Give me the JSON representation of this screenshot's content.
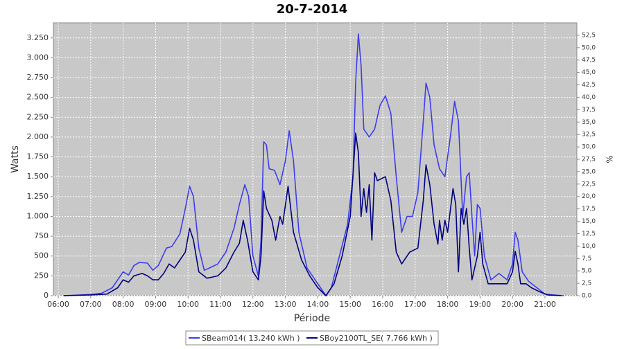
{
  "chart_data": {
    "type": "line",
    "title": "20-7-2014",
    "x_label": "Période",
    "y_label": "Watts",
    "y2_label": "%",
    "xlim": [
      "05:51",
      "21:59"
    ],
    "xticks": [
      "06:00",
      "07:00",
      "08:00",
      "09:00",
      "10:00",
      "11:00",
      "12:00",
      "13:00",
      "14:00",
      "15:00",
      "16:00",
      "17:00",
      "18:00",
      "19:00",
      "20:00",
      "21:00"
    ],
    "ylim": [
      0,
      3440
    ],
    "yticks": [
      0,
      {
        "value": 250,
        "label": "250"
      },
      {
        "value": 500,
        "label": "500"
      },
      {
        "value": 750,
        "label": "750"
      },
      {
        "value": 1000,
        "label": "1.000"
      },
      {
        "value": 1250,
        "label": "1.250"
      },
      {
        "value": 1500,
        "label": "1.500"
      },
      {
        "value": 1750,
        "label": "1.750"
      },
      {
        "value": 2000,
        "label": "2.000"
      },
      {
        "value": 2250,
        "label": "2.250"
      },
      {
        "value": 2500,
        "label": "2.500"
      },
      {
        "value": 2750,
        "label": "2.750"
      },
      {
        "value": 3000,
        "label": "3.000"
      },
      {
        "value": 3250,
        "label": "3.250"
      }
    ],
    "y2lim": [
      0,
      55
    ],
    "y2ticks": [
      {
        "value": 0,
        "label": "0,0"
      },
      {
        "value": 2.5,
        "label": "2,5"
      },
      {
        "value": 5,
        "label": "5,0"
      },
      {
        "value": 7.5,
        "label": "7,5"
      },
      {
        "value": 10,
        "label": "10,0"
      },
      {
        "value": 12.5,
        "label": "12,5"
      },
      {
        "value": 15,
        "label": "15,0"
      },
      {
        "value": 17.5,
        "label": "17,5"
      },
      {
        "value": 20,
        "label": "20,0"
      },
      {
        "value": 22.5,
        "label": "22,5"
      },
      {
        "value": 25,
        "label": "25,0"
      },
      {
        "value": 27.5,
        "label": "27,5"
      },
      {
        "value": 30,
        "label": "30,0"
      },
      {
        "value": 32.5,
        "label": "32,5"
      },
      {
        "value": 35,
        "label": "35,0"
      },
      {
        "value": 37.5,
        "label": "37,5"
      },
      {
        "value": 40,
        "label": "40,0"
      },
      {
        "value": 42.5,
        "label": "42,5"
      },
      {
        "value": 45,
        "label": "45,0"
      },
      {
        "value": 47.5,
        "label": "47,5"
      },
      {
        "value": 50,
        "label": "50,0"
      },
      {
        "value": 52.5,
        "label": "52,5"
      }
    ],
    "grid": true,
    "series": [
      {
        "name": "SBeam014( 13,240 kWh )",
        "color": "#3c3cf0",
        "x": [
          "06:10",
          "06:30",
          "07:00",
          "07:20",
          "07:40",
          "07:50",
          "08:00",
          "08:10",
          "08:20",
          "08:30",
          "08:45",
          "08:55",
          "09:05",
          "09:20",
          "09:30",
          "09:45",
          "09:55",
          "10:03",
          "10:10",
          "10:20",
          "10:30",
          "10:40",
          "10:55",
          "11:10",
          "11:25",
          "11:35",
          "11:45",
          "11:52",
          "12:00",
          "12:10",
          "12:15",
          "12:20",
          "12:25",
          "12:30",
          "12:40",
          "12:50",
          "13:00",
          "13:07",
          "13:15",
          "13:25",
          "13:40",
          "13:55",
          "14:05",
          "14:15",
          "14:25",
          "14:40",
          "14:55",
          "15:05",
          "15:10",
          "15:15",
          "15:20",
          "15:25",
          "15:35",
          "15:45",
          "15:55",
          "16:05",
          "16:15",
          "16:25",
          "16:35",
          "16:45",
          "16:55",
          "17:05",
          "17:15",
          "17:20",
          "17:27",
          "17:35",
          "17:45",
          "17:55",
          "18:05",
          "18:13",
          "18:20",
          "18:28",
          "18:35",
          "18:40",
          "18:45",
          "18:50",
          "18:55",
          "19:00",
          "19:08",
          "19:20",
          "19:35",
          "19:50",
          "20:00",
          "20:05",
          "20:10",
          "20:18",
          "20:30",
          "20:45",
          "21:00",
          "21:15",
          "21:35"
        ],
        "values": [
          0,
          5,
          15,
          30,
          100,
          200,
          300,
          260,
          380,
          420,
          410,
          320,
          380,
          600,
          620,
          780,
          1100,
          1380,
          1250,
          600,
          320,
          350,
          400,
          550,
          850,
          1150,
          1400,
          1250,
          500,
          250,
          700,
          1940,
          1900,
          1600,
          1580,
          1400,
          1700,
          2080,
          1700,
          800,
          350,
          200,
          100,
          0,
          100,
          500,
          900,
          1500,
          2700,
          3300,
          2900,
          2100,
          2000,
          2100,
          2400,
          2520,
          2300,
          1500,
          800,
          1000,
          1000,
          1300,
          2200,
          2680,
          2500,
          1900,
          1600,
          1500,
          2000,
          2450,
          2200,
          1000,
          1500,
          1550,
          1000,
          500,
          1150,
          1100,
          500,
          200,
          280,
          200,
          400,
          800,
          700,
          300,
          180,
          100,
          20,
          10,
          0
        ]
      },
      {
        "name": "SBoy2100TL_SE( 7,766 kWh )",
        "color": "#000080",
        "x": [
          "06:10",
          "07:00",
          "07:30",
          "07:50",
          "08:00",
          "08:10",
          "08:20",
          "08:35",
          "08:45",
          "08:55",
          "09:05",
          "09:15",
          "09:25",
          "09:35",
          "09:45",
          "09:55",
          "10:03",
          "10:10",
          "10:20",
          "10:35",
          "10:55",
          "11:10",
          "11:25",
          "11:35",
          "11:42",
          "11:50",
          "12:00",
          "12:10",
          "12:15",
          "12:20",
          "12:25",
          "12:35",
          "12:42",
          "12:50",
          "12:55",
          "13:05",
          "13:15",
          "13:30",
          "13:45",
          "14:00",
          "14:15",
          "14:30",
          "14:45",
          "15:00",
          "15:10",
          "15:15",
          "15:20",
          "15:25",
          "15:30",
          "15:35",
          "15:40",
          "15:45",
          "15:50",
          "16:05",
          "16:15",
          "16:25",
          "16:35",
          "16:50",
          "17:05",
          "17:15",
          "17:20",
          "17:27",
          "17:35",
          "17:42",
          "17:45",
          "17:50",
          "17:55",
          "18:00",
          "18:10",
          "18:15",
          "18:20",
          "18:25",
          "18:30",
          "18:35",
          "18:40",
          "18:45",
          "18:55",
          "19:00",
          "19:05",
          "19:15",
          "19:35",
          "19:50",
          "20:00",
          "20:05",
          "20:10",
          "20:15",
          "20:25",
          "20:35",
          "20:50",
          "21:05",
          "21:30"
        ],
        "values": [
          0,
          10,
          20,
          100,
          200,
          170,
          250,
          280,
          250,
          200,
          200,
          280,
          400,
          350,
          450,
          550,
          850,
          700,
          300,
          220,
          250,
          350,
          550,
          660,
          950,
          700,
          300,
          200,
          500,
          1320,
          1100,
          950,
          700,
          1000,
          900,
          1380,
          800,
          450,
          250,
          100,
          0,
          150,
          500,
          1000,
          2050,
          1800,
          1000,
          1350,
          1050,
          1400,
          700,
          1550,
          1450,
          1500,
          1200,
          550,
          400,
          550,
          600,
          1200,
          1650,
          1400,
          900,
          650,
          950,
          700,
          950,
          800,
          1350,
          1150,
          300,
          1100,
          900,
          1100,
          600,
          200,
          500,
          800,
          400,
          150,
          150,
          150,
          300,
          560,
          400,
          150,
          150,
          100,
          50,
          10,
          0
        ]
      }
    ]
  }
}
